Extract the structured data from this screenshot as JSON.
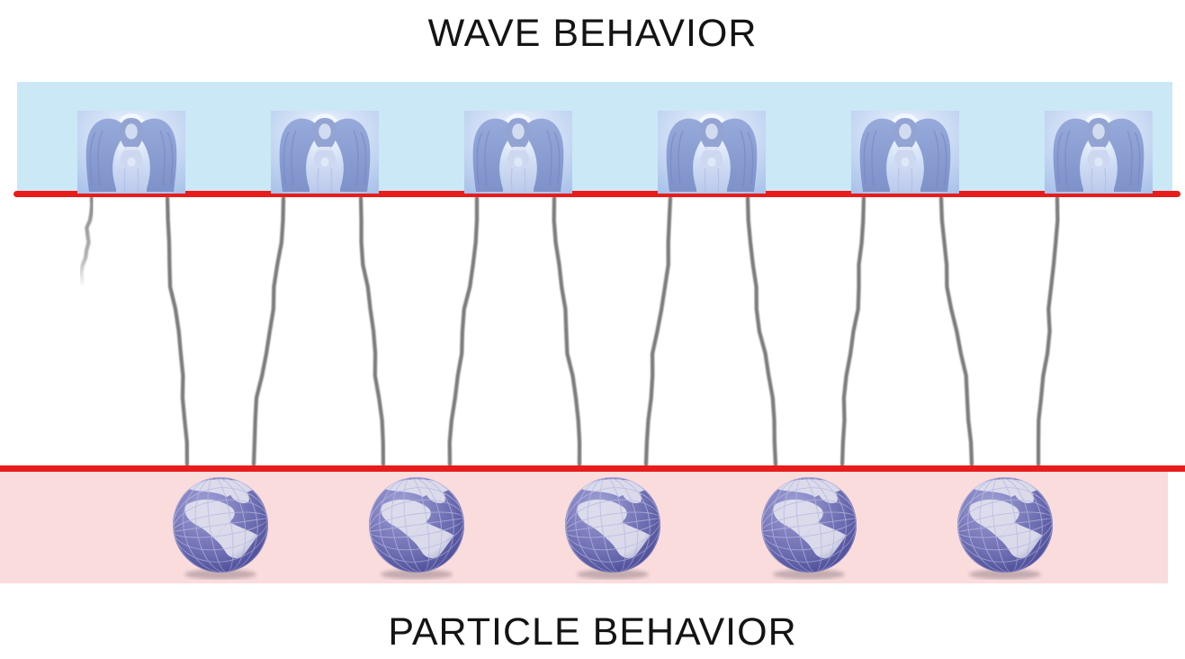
{
  "titles": {
    "top": "WAVE BEHAVIOR",
    "bottom": "PARTICLE BEHAVIOR"
  },
  "zones": {
    "wave": {
      "name": "wave-zone",
      "band_color": "#cbe8f6"
    },
    "particle": {
      "name": "particle-zone",
      "band_color": "#fadcdd"
    }
  },
  "colors": {
    "canvas_bg": "#ffffff",
    "boundary_line": "#e91c1c",
    "wave_stroke": "#7b7b7b",
    "title_text": "#141414",
    "angel_wing": "#8ca0d4",
    "angel_robe": "#d3ddf2",
    "globe_sea": "#6e6eb2",
    "globe_land": "#e0e0ee",
    "globe_grid": "#b7b7e0"
  },
  "figures": {
    "angels": {
      "icon": "angel-image",
      "count": 6
    },
    "globes": {
      "icon": "globe-image",
      "count": 5
    },
    "wave_periods": 5
  }
}
